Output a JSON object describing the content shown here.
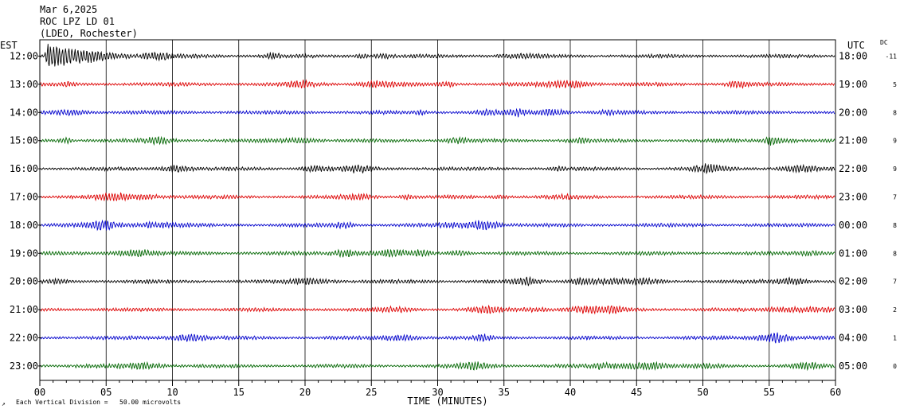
{
  "header": {
    "date": "Mar 6,2025",
    "station": "ROC LPZ LD 01",
    "network": "(LDEO, Rochester)",
    "left_tz": "EST",
    "right_tz": "UTC",
    "dc_label": "DC"
  },
  "footer": {
    "icon_glyph": "↗",
    "scale_note": "Each Vertical Division =   50.00 microvolts"
  },
  "chart_data": {
    "type": "line",
    "title": "",
    "xlabel": "TIME (MINUTES)",
    "ylabel": "",
    "xlim": [
      0,
      60
    ],
    "x_ticks": [
      "00",
      "05",
      "10",
      "15",
      "20",
      "25",
      "30",
      "35",
      "40",
      "45",
      "50",
      "55",
      "60"
    ],
    "grid": true,
    "minor_tick_every_minutes": 1,
    "trace_colors": [
      "#000000",
      "#dd0000",
      "#0000cc",
      "#006600"
    ],
    "event": {
      "row": 0,
      "start_minute": 0.3,
      "end_minute": 16,
      "description": "large-amplitude arrival"
    },
    "rows": [
      {
        "local": "12:00",
        "utc": "18:00",
        "dc": "-11",
        "color": "#000000"
      },
      {
        "local": "13:00",
        "utc": "19:00",
        "dc": "5",
        "color": "#dd0000"
      },
      {
        "local": "14:00",
        "utc": "20:00",
        "dc": "8",
        "color": "#0000cc"
      },
      {
        "local": "15:00",
        "utc": "21:00",
        "dc": "9",
        "color": "#006600"
      },
      {
        "local": "16:00",
        "utc": "22:00",
        "dc": "9",
        "color": "#000000"
      },
      {
        "local": "17:00",
        "utc": "23:00",
        "dc": "7",
        "color": "#dd0000"
      },
      {
        "local": "18:00",
        "utc": "00:00",
        "dc": "8",
        "color": "#0000cc"
      },
      {
        "local": "19:00",
        "utc": "01:00",
        "dc": "8",
        "color": "#006600"
      },
      {
        "local": "20:00",
        "utc": "02:00",
        "dc": "7",
        "color": "#000000"
      },
      {
        "local": "21:00",
        "utc": "03:00",
        "dc": "2",
        "color": "#dd0000"
      },
      {
        "local": "22:00",
        "utc": "04:00",
        "dc": "1",
        "color": "#0000cc"
      },
      {
        "local": "23:00",
        "utc": "05:00",
        "dc": "0",
        "color": "#006600"
      }
    ]
  }
}
